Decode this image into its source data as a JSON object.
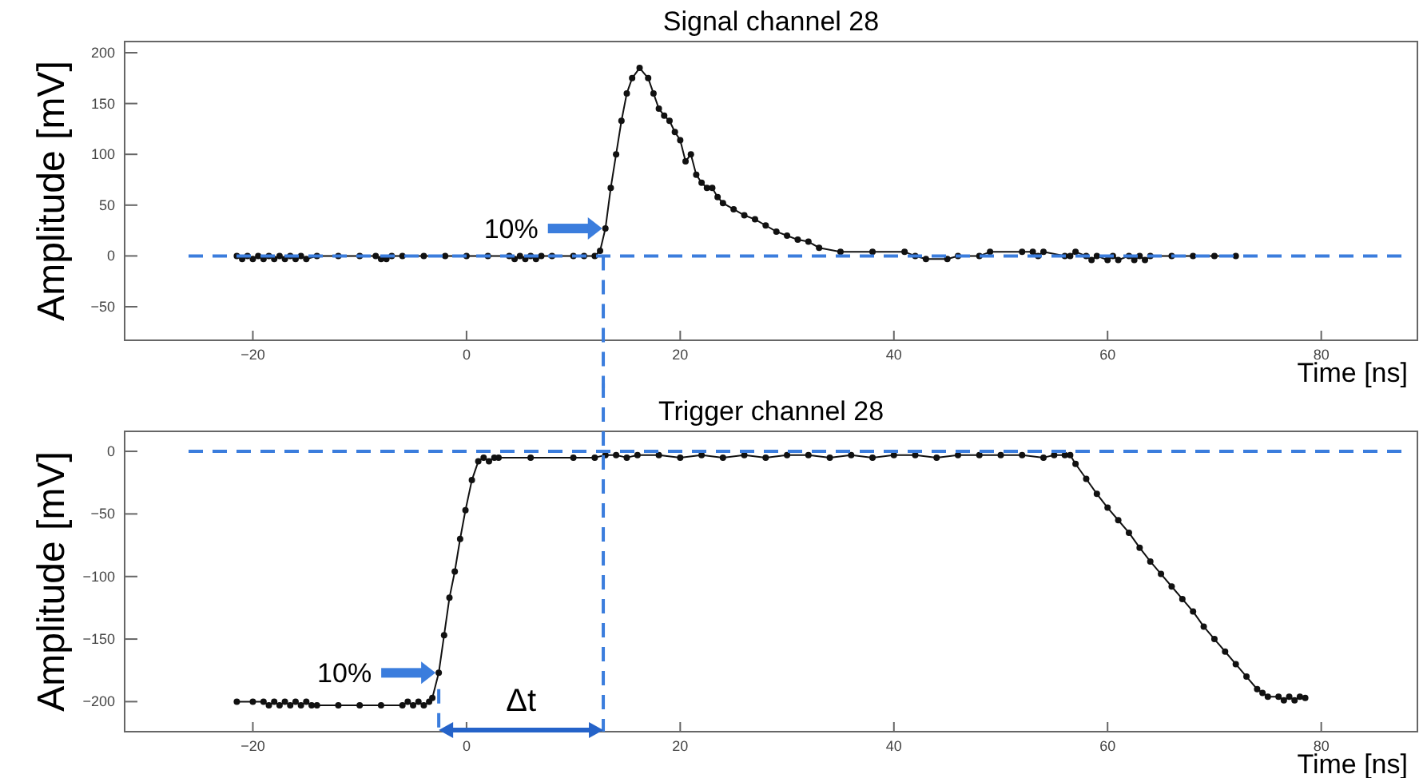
{
  "chart_data": [
    {
      "type": "line",
      "title": "Signal channel 28",
      "xlabel": "Time [ns]",
      "ylabel": "Amplitude [mV]",
      "xlim": [
        -32,
        89
      ],
      "ylim": [
        -83,
        211
      ],
      "xticks": [
        -20,
        0,
        20,
        40,
        60,
        80
      ],
      "yticks": [
        -50,
        0,
        50,
        100,
        150,
        200
      ],
      "grid": false,
      "marker": "circle",
      "line_style": "solid",
      "series": [
        {
          "color": "#111111",
          "x": [
            -21.5,
            -21,
            -20.5,
            -20,
            -19.5,
            -19,
            -18.5,
            -18,
            -17.5,
            -17,
            -16.5,
            -16,
            -15.5,
            -15,
            -14,
            -12,
            -10,
            -8.5,
            -8,
            -7.5,
            -7,
            -6,
            -4,
            -2,
            0,
            2,
            4,
            4.5,
            5,
            5.5,
            6,
            6.5,
            7,
            8,
            10,
            11,
            12,
            12.5,
            13,
            13.5,
            14,
            14.5,
            15,
            15.5,
            16.2,
            17,
            17.5,
            18,
            18.5,
            19,
            19.5,
            20,
            20.5,
            21,
            21.5,
            22,
            22.5,
            23,
            23.5,
            24,
            25,
            26,
            27,
            28,
            29,
            30,
            31,
            32,
            33,
            35,
            38,
            41,
            42,
            43,
            45,
            46,
            48,
            49,
            52,
            53,
            53.5,
            54,
            56,
            56.5,
            57,
            58,
            58.5,
            59,
            60,
            60.5,
            61,
            62,
            62.5,
            63,
            63.5,
            64,
            66,
            68,
            70,
            72
          ],
          "values": [
            0,
            -3,
            0,
            -3,
            0,
            -3,
            0,
            -3,
            0,
            -3,
            0,
            -3,
            0,
            -3,
            0,
            0,
            0,
            0,
            -3,
            -3,
            0,
            0,
            0,
            0,
            0,
            0,
            0,
            -3,
            0,
            -3,
            0,
            -3,
            0,
            0,
            0,
            0,
            0,
            5,
            27,
            67,
            100,
            133,
            160,
            175,
            185,
            175,
            160,
            145,
            138,
            133,
            122,
            114,
            93,
            100,
            80,
            72,
            67,
            67,
            58,
            52,
            46,
            40,
            36,
            30,
            24,
            20,
            16,
            14,
            8,
            4,
            4,
            4,
            0,
            -3,
            -3,
            0,
            0,
            4,
            4,
            4,
            0,
            4,
            0,
            0,
            4,
            0,
            -4,
            0,
            -4,
            0,
            -4,
            0,
            -4,
            0,
            -4,
            0,
            0,
            0,
            0,
            0
          ]
        }
      ],
      "ref_lines": [
        {
          "axis": "y",
          "value": 0,
          "color": "#3b7ddd",
          "line_style": "dashed"
        },
        {
          "axis": "x",
          "value": 12.8,
          "color": "#3b7ddd",
          "line_style": "dashed"
        }
      ],
      "annotations": [
        {
          "text": "10%",
          "x": 13,
          "y": 27
        }
      ]
    },
    {
      "type": "line",
      "title": "Trigger channel 28",
      "xlabel": "Time [ns]",
      "ylabel": "Amplitude [mV]",
      "xlim": [
        -32,
        89
      ],
      "ylim": [
        -224,
        16
      ],
      "xticks": [
        -20,
        0,
        20,
        40,
        60,
        80
      ],
      "yticks": [
        -200,
        -150,
        -100,
        -50,
        0
      ],
      "grid": false,
      "marker": "circle",
      "line_style": "solid",
      "series": [
        {
          "color": "#111111",
          "x": [
            -21.5,
            -20,
            -19,
            -18.5,
            -18,
            -17.5,
            -17,
            -16.5,
            -16,
            -15.5,
            -15,
            -14.5,
            -14,
            -12,
            -10,
            -8,
            -6,
            -5.5,
            -5,
            -4.5,
            -4,
            -3.5,
            -3.2,
            -2.6,
            -2.1,
            -1.6,
            -1.1,
            -0.6,
            -0.1,
            0.5,
            1.1,
            1.6,
            2.1,
            2.6,
            3,
            6,
            10,
            12,
            13,
            14,
            15,
            16,
            18,
            20,
            22,
            24,
            26,
            28,
            30,
            32,
            34,
            36,
            38,
            40,
            42,
            44,
            46,
            48,
            50,
            52,
            54,
            55,
            56,
            56.5,
            57,
            58,
            59,
            60,
            61,
            62,
            63,
            64,
            65,
            66,
            67,
            68,
            69,
            70,
            71,
            72,
            73,
            74,
            74.5,
            75,
            76,
            76.5,
            77,
            77.5,
            78,
            78.5
          ],
          "values": [
            -200,
            -200,
            -200,
            -203,
            -200,
            -203,
            -200,
            -203,
            -200,
            -203,
            -200,
            -203,
            -203,
            -203,
            -203,
            -203,
            -203,
            -200,
            -203,
            -200,
            -203,
            -200,
            -197,
            -177,
            -147,
            -117,
            -96,
            -70,
            -47,
            -23,
            -8,
            -5,
            -8,
            -5,
            -5,
            -5,
            -5,
            -5,
            -3,
            -3,
            -5,
            -3,
            -3,
            -5,
            -3,
            -5,
            -3,
            -5,
            -3,
            -3,
            -5,
            -3,
            -5,
            -3,
            -3,
            -5,
            -3,
            -3,
            -3,
            -3,
            -5,
            -3,
            -3,
            -3,
            -10,
            -22,
            -34,
            -45,
            -55,
            -65,
            -77,
            -88,
            -98,
            -108,
            -118,
            -128,
            -140,
            -150,
            -160,
            -170,
            -180,
            -190,
            -193,
            -196,
            -196,
            -199,
            -196,
            -199,
            -196,
            -197
          ]
        }
      ],
      "ref_lines": [
        {
          "axis": "y",
          "value": 0,
          "color": "#3b7ddd",
          "line_style": "dashed"
        },
        {
          "axis": "x",
          "value": 12.8,
          "color": "#3b7ddd",
          "line_style": "dashed"
        },
        {
          "axis": "x",
          "value": -2.6,
          "color": "#3b7ddd",
          "line_style": "dashed"
        }
      ],
      "annotations": [
        {
          "text": "10%",
          "x": -2.6,
          "y": -177
        },
        "Δt"
      ]
    }
  ]
}
